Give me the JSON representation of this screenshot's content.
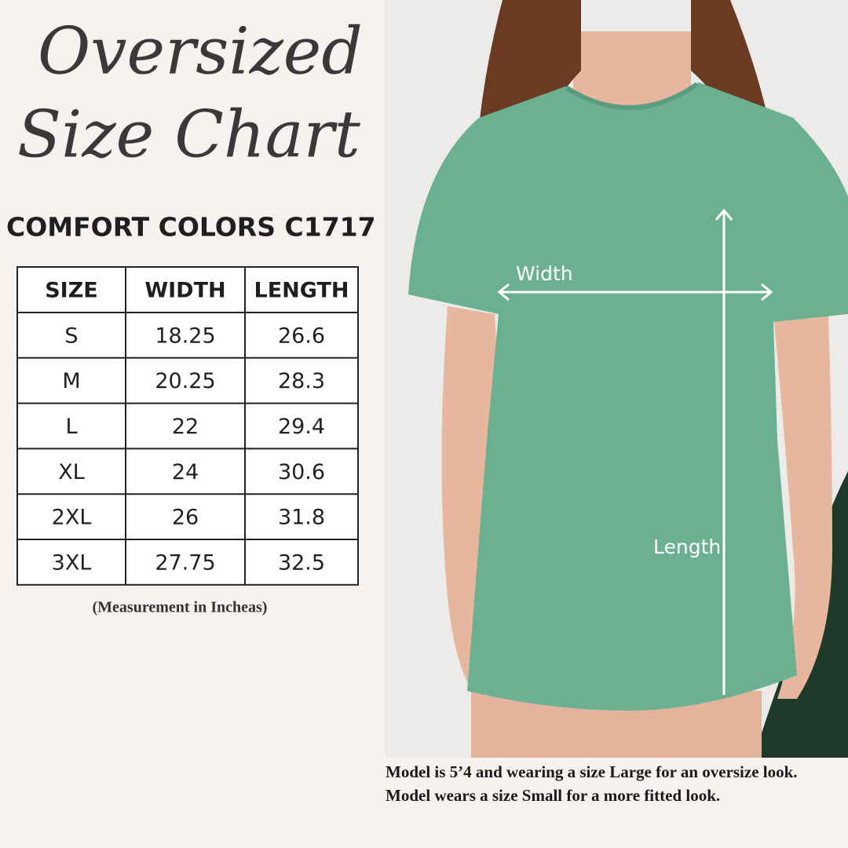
{
  "header": {
    "title_lines": [
      "Oversized",
      "Size Chart"
    ],
    "subtitle": "COMFORT COLORS C1717"
  },
  "table": {
    "columns": [
      "SIZE",
      "WIDTH",
      "LENGTH"
    ],
    "rows": [
      [
        "S",
        "18.25",
        "26.6"
      ],
      [
        "M",
        "20.25",
        "28.3"
      ],
      [
        "L",
        "22",
        "29.4"
      ],
      [
        "XL",
        "24",
        "30.6"
      ],
      [
        "2XL",
        "26",
        "31.8"
      ],
      [
        "3XL",
        "27.75",
        "32.5"
      ]
    ]
  },
  "note": "(Measurement in Incheas)",
  "photo": {
    "width_label": "Width",
    "length_label": "Length",
    "caption_lines": [
      "Model is 5’4 and wearing a size Large for an oversize look.",
      "Model wears a size Small for a more fitted look."
    ]
  }
}
